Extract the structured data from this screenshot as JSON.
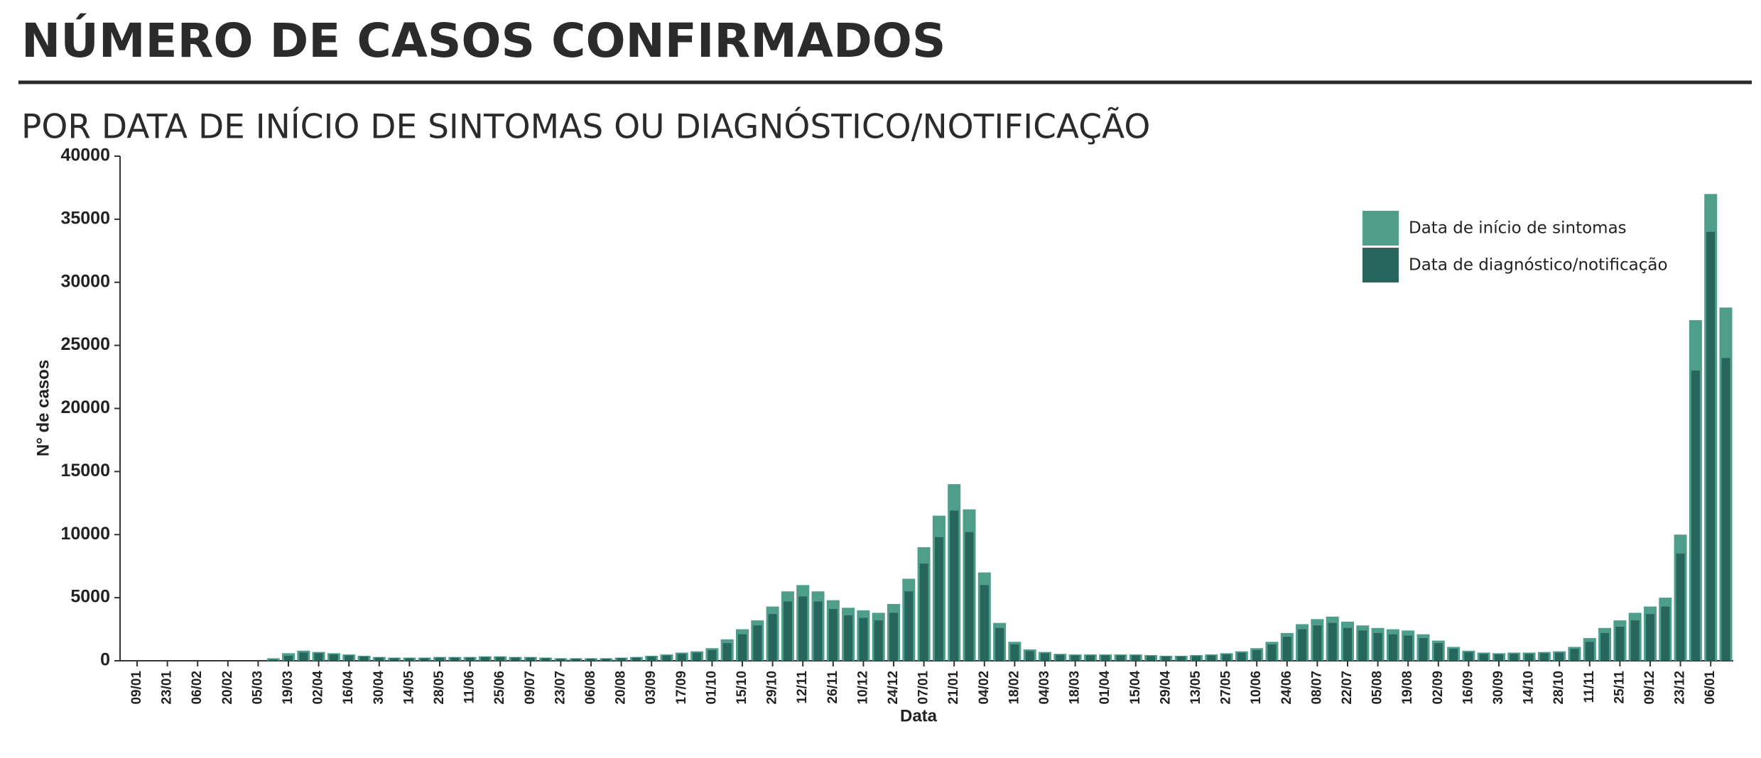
{
  "chart_data": {
    "type": "bar",
    "title": "NÚMERO DE CASOS CONFIRMADOS",
    "subtitle": "POR DATA DE INÍCIO DE SINTOMAS OU DIAGNÓSTICO/NOTIFICAÇÃO",
    "x_label": "Data",
    "y_label": "N° de casos",
    "categories": [
      "09/01",
      null,
      "23/01",
      null,
      "06/02",
      null,
      "20/02",
      null,
      "05/03",
      null,
      "19/03",
      null,
      "02/04",
      null,
      "16/04",
      null,
      "30/04",
      null,
      "14/05",
      null,
      "28/05",
      null,
      "11/06",
      null,
      "25/06",
      null,
      "09/07",
      null,
      "23/07",
      null,
      "06/08",
      null,
      "20/08",
      null,
      "03/09",
      null,
      "17/09",
      null,
      "01/10",
      null,
      "15/10",
      null,
      "29/10",
      null,
      "12/11",
      null,
      "26/11",
      null,
      "10/12",
      null,
      "24/12",
      null,
      "07/01",
      null,
      "21/01",
      null,
      "04/02",
      null,
      "18/02",
      null,
      "04/03",
      null,
      "18/03",
      null,
      "01/04",
      null,
      "15/04",
      null,
      "29/04",
      null,
      "13/05",
      null,
      "27/05",
      null,
      "10/06",
      null,
      "24/06",
      null,
      "08/07",
      null,
      "22/07",
      null,
      "05/08",
      null,
      "19/08",
      null,
      "02/09",
      null,
      "16/09",
      null,
      "30/09",
      null,
      "14/10",
      null,
      "28/10",
      null,
      "11/11",
      null,
      "25/11",
      null,
      "09/12",
      null,
      "23/12",
      null,
      "06/01",
      null
    ],
    "series": [
      {
        "name": "Data de início de sintomas",
        "color": "#4f9e8c",
        "values": [
          0,
          0,
          0,
          0,
          0,
          0,
          0,
          0,
          0,
          200,
          600,
          800,
          700,
          600,
          500,
          400,
          300,
          250,
          250,
          250,
          300,
          300,
          300,
          350,
          350,
          300,
          300,
          250,
          200,
          200,
          200,
          200,
          250,
          300,
          400,
          500,
          650,
          750,
          1000,
          1700,
          2500,
          3200,
          4300,
          5500,
          6000,
          5500,
          4800,
          4200,
          4000,
          3800,
          4500,
          6500,
          9000,
          11500,
          14000,
          12000,
          7000,
          3000,
          1500,
          900,
          700,
          550,
          500,
          500,
          500,
          500,
          500,
          450,
          400,
          400,
          450,
          500,
          600,
          750,
          1000,
          1500,
          2200,
          2900,
          3300,
          3500,
          3100,
          2800,
          2600,
          2500,
          2400,
          2100,
          1600,
          1100,
          800,
          650,
          600,
          650,
          650,
          700,
          750,
          1100,
          1800,
          2600,
          3200,
          3800,
          4300,
          5000,
          10000,
          27000,
          37000,
          28000
        ]
      },
      {
        "name": "Data de diagnóstico/notificação",
        "color": "#27665d",
        "values": [
          0,
          0,
          0,
          0,
          0,
          0,
          0,
          0,
          0,
          100,
          400,
          650,
          600,
          500,
          420,
          330,
          250,
          200,
          200,
          200,
          250,
          250,
          250,
          300,
          300,
          260,
          250,
          210,
          170,
          170,
          170,
          170,
          210,
          250,
          330,
          420,
          550,
          640,
          850,
          1400,
          2100,
          2800,
          3700,
          4700,
          5100,
          4700,
          4100,
          3600,
          3400,
          3200,
          3800,
          5500,
          7700,
          9800,
          11900,
          10200,
          6000,
          2600,
          1300,
          770,
          600,
          470,
          430,
          430,
          430,
          430,
          430,
          380,
          340,
          340,
          380,
          430,
          510,
          640,
          850,
          1300,
          1900,
          2500,
          2800,
          3000,
          2600,
          2400,
          2200,
          2100,
          2000,
          1800,
          1400,
          950,
          680,
          550,
          510,
          550,
          550,
          600,
          640,
          940,
          1500,
          2200,
          2700,
          3200,
          3700,
          4300,
          8500,
          23000,
          34000,
          24000
        ]
      }
    ],
    "ylim": [
      0,
      40000
    ],
    "yticks": [
      0,
      5000,
      10000,
      15000,
      20000,
      25000,
      30000,
      35000,
      40000
    ]
  }
}
